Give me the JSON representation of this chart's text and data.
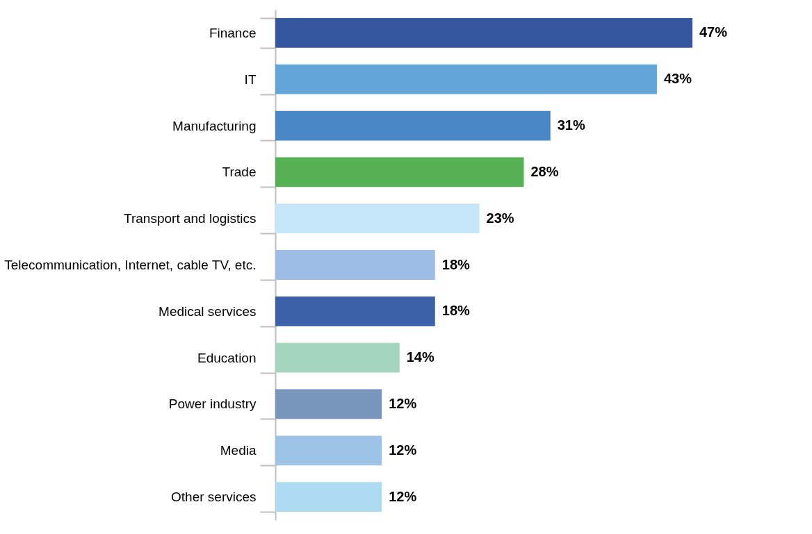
{
  "chart_data": {
    "type": "bar",
    "orientation": "horizontal",
    "categories": [
      "Finance",
      "IT",
      "Manufacturing",
      "Trade",
      "Transport and logistics",
      "Telecommunication, Internet, cable TV, etc.",
      "Medical services",
      "Education",
      "Power industry",
      "Media",
      "Other services"
    ],
    "values": [
      47,
      43,
      31,
      28,
      23,
      18,
      18,
      14,
      12,
      12,
      12
    ],
    "value_labels": [
      "47%",
      "43%",
      "31%",
      "28%",
      "23%",
      "18%",
      "18%",
      "14%",
      "12%",
      "12%",
      "12%"
    ],
    "colors": [
      "#3756a0",
      "#62a5d8",
      "#4a87c6",
      "#55b153",
      "#c5e6f8",
      "#9dbde6",
      "#3c5faa",
      "#a4d6bd",
      "#7895bd",
      "#9dc3e6",
      "#acdaf1"
    ],
    "grid": false
  }
}
